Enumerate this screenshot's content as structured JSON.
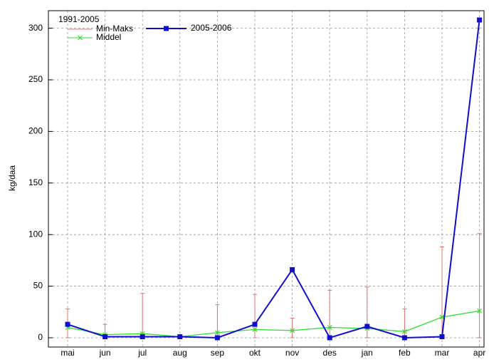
{
  "chart_data": {
    "type": "line",
    "y_label": "kg/daa",
    "legend_title": "1991-2005",
    "categories": [
      "mai",
      "jun",
      "jul",
      "aug",
      "sep",
      "okt",
      "nov",
      "des",
      "jan",
      "feb",
      "mar",
      "apr"
    ],
    "ylim": [
      -9,
      317
    ],
    "yticks": [
      0,
      50,
      100,
      150,
      200,
      250,
      300
    ],
    "grid": true,
    "series": [
      {
        "name": "Min-Maks",
        "color": "#e07070",
        "min": [
          0,
          0,
          0,
          0,
          0,
          0,
          0,
          0,
          0,
          0,
          0,
          0
        ],
        "max": [
          28,
          13,
          43,
          2,
          32,
          42,
          19,
          46,
          49,
          28,
          88,
          101
        ]
      },
      {
        "name": "Middel",
        "color": "#33dd33",
        "values": [
          10,
          3,
          4,
          1,
          5,
          8,
          7,
          10,
          9,
          6,
          20,
          26
        ]
      },
      {
        "name": "2005-2006",
        "color": "#1010cc",
        "values": [
          13,
          1,
          1,
          1,
          0,
          13,
          66,
          0,
          11,
          0,
          1,
          308
        ]
      }
    ]
  }
}
